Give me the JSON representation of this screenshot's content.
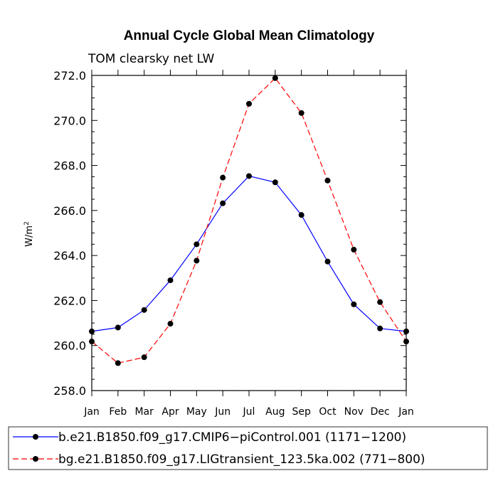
{
  "chart_data": {
    "type": "line",
    "title": "Annual Cycle Global Mean Climatology",
    "subtitle": "TOM clearsky net LW",
    "ylabel": "W/m",
    "ylabel_superscript": "2",
    "xlabel": "",
    "categories": [
      "Jan",
      "Feb",
      "Mar",
      "Apr",
      "May",
      "Jun",
      "Jul",
      "Aug",
      "Sep",
      "Oct",
      "Nov",
      "Dec",
      "Jan"
    ],
    "ylim": [
      258.0,
      272.0
    ],
    "yticks": [
      "258.0",
      "260.0",
      "262.0",
      "264.0",
      "266.0",
      "268.0",
      "270.0",
      "272.0"
    ],
    "grid": false,
    "legend_position": "bottom",
    "series": [
      {
        "name": "b.e21.B1850.f09_g17.CMIP6−piControl.001 (1171−1200)",
        "color": "#0000ff",
        "dash": "solid",
        "values": [
          260.63,
          260.8,
          261.58,
          262.9,
          264.5,
          266.32,
          267.53,
          267.25,
          265.8,
          263.73,
          261.83,
          260.76,
          260.63
        ]
      },
      {
        "name": "bg.e21.B1850.f09_g17.LIGtransient_123.5ka.002 (771−800)",
        "color": "#ff0000",
        "dash": "dashed",
        "values": [
          260.18,
          259.22,
          259.48,
          260.97,
          263.77,
          267.46,
          270.74,
          271.88,
          270.33,
          267.33,
          264.26,
          261.93,
          260.18
        ]
      }
    ]
  }
}
